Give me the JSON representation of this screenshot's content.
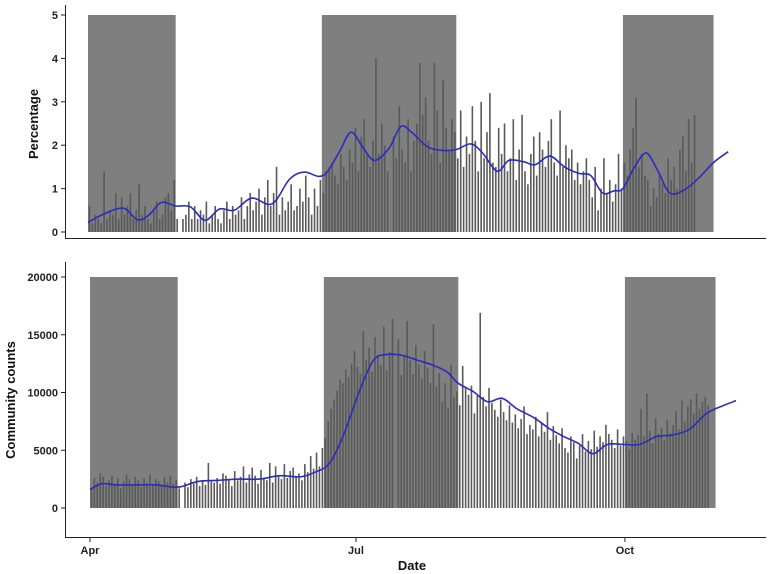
{
  "chart_data": [
    {
      "type": "bar",
      "panel": "top",
      "ylabel": "Percentage",
      "x_axis": "date",
      "xlim": [
        "2020-04-01",
        "2020-11-08"
      ],
      "ylim": [
        0,
        5
      ],
      "yticks": [
        "0",
        "1",
        "2",
        "3",
        "4",
        "5"
      ],
      "shaded_periods": [
        {
          "start": "2020-04-01",
          "end": "2020-05-01"
        },
        {
          "start": "2020-06-20",
          "end": "2020-08-05"
        },
        {
          "start": "2020-10-01",
          "end": "2020-11-01"
        }
      ],
      "bar_color": "#5a5a5a",
      "shade_color": "#7f7f7f",
      "smooth_color": "#2b2bbf",
      "bars": {
        "start": "2020-04-01",
        "values": [
          0.6,
          0.2,
          0.4,
          0.3,
          0.2,
          1.4,
          0.3,
          0.5,
          0.4,
          0.9,
          0.3,
          0.8,
          0.4,
          0.6,
          0.9,
          0.3,
          0.5,
          1.1,
          0.4,
          0.6,
          0.3,
          0.2,
          0.5,
          0.7,
          0.3,
          0.4,
          0.8,
          0.9,
          0.5,
          1.2,
          0.3,
          0.7,
          0.3,
          0.4,
          0.7,
          0.3,
          0.6,
          0.3,
          0.5,
          0.4,
          0.7,
          0.2,
          0.4,
          0.6,
          0.3,
          0.2,
          0.5,
          0.7,
          0.3,
          0.6,
          0.4,
          0.5,
          0.8,
          0.3,
          0.6,
          0.9,
          0.5,
          0.7,
          1.0,
          0.4,
          0.8,
          1.2,
          0.6,
          0.9,
          1.5,
          0.4,
          0.8,
          0.5,
          0.7,
          1.1,
          0.5,
          0.6,
          1.0,
          0.7,
          1.3,
          0.8,
          0.4,
          1.0,
          0.6,
          1.2,
          0.9,
          1.4,
          1.5,
          1.6,
          1.3,
          1.1,
          1.8,
          1.5,
          1.2,
          1.9,
          1.6,
          2.4,
          1.4,
          2.2,
          2.6,
          1.8,
          1.5,
          2.1,
          4.0,
          1.8,
          2.5,
          2.0,
          1.4,
          3.3,
          2.2,
          1.7,
          2.9,
          1.9,
          1.6,
          2.6,
          1.4,
          2.1,
          2.5,
          3.9,
          2.7,
          3.1,
          2.1,
          1.8,
          3.9,
          2.8,
          1.6,
          3.5,
          2.4,
          1.9,
          2.6,
          2.3,
          1.7,
          2.8,
          1.5,
          2.2,
          1.8,
          2.9,
          2.1,
          1.4,
          3.0,
          1.7,
          2.3,
          3.2,
          1.6,
          1.5,
          2.4,
          1.8,
          2.5,
          1.4,
          1.7,
          2.6,
          1.2,
          1.9,
          2.7,
          1.4,
          1.1,
          1.8,
          2.2,
          1.3,
          2.3,
          1.9,
          1.5,
          2.1,
          2.6,
          1.6,
          1.3,
          2.8,
          1.5,
          2.0,
          1.7,
          1.9,
          1.2,
          1.6,
          1.1,
          1.4,
          1.7,
          1.2,
          0.8,
          1.5,
          0.5,
          1.0,
          1.7,
          0.9,
          1.2,
          0.7,
          1.1,
          1.8,
          1.0,
          1.6,
          1.3,
          1.9,
          2.4,
          3.1,
          1.5,
          1.8,
          1.3,
          1.2,
          0.6,
          1.0,
          0.8,
          1.3,
          1.1,
          0.9,
          1.7,
          1.2,
          1.5,
          1.0,
          1.9,
          2.2,
          1.4,
          2.6,
          1.6,
          2.7
        ],
        "gaps": [
          31,
          103
        ]
      },
      "smooth": {
        "x": [
          "2020-04-01",
          "2020-04-06",
          "2020-04-13",
          "2020-04-18",
          "2020-04-22",
          "2020-04-26",
          "2020-05-01",
          "2020-05-06",
          "2020-05-11",
          "2020-05-16",
          "2020-05-21",
          "2020-05-27",
          "2020-06-03",
          "2020-06-09",
          "2020-06-14",
          "2020-06-19",
          "2020-06-22",
          "2020-06-26",
          "2020-06-30",
          "2020-07-04",
          "2020-07-08",
          "2020-07-13",
          "2020-07-17",
          "2020-07-21",
          "2020-07-26",
          "2020-07-31",
          "2020-08-05",
          "2020-08-10",
          "2020-08-14",
          "2020-08-19",
          "2020-08-23",
          "2020-08-28",
          "2020-09-01",
          "2020-09-06",
          "2020-09-11",
          "2020-09-16",
          "2020-09-20",
          "2020-09-24",
          "2020-09-28",
          "2020-10-01",
          "2020-10-05",
          "2020-10-09",
          "2020-10-13",
          "2020-10-17",
          "2020-10-22",
          "2020-10-27",
          "2020-11-01",
          "2020-11-06"
        ],
        "y": [
          0.22,
          0.4,
          0.55,
          0.28,
          0.4,
          0.68,
          0.6,
          0.58,
          0.27,
          0.53,
          0.5,
          0.78,
          0.65,
          1.22,
          1.38,
          1.28,
          1.4,
          1.85,
          2.3,
          1.95,
          1.65,
          1.93,
          2.43,
          2.28,
          1.97,
          1.88,
          1.9,
          2.03,
          1.82,
          1.4,
          1.65,
          1.62,
          1.55,
          1.75,
          1.5,
          1.35,
          1.3,
          0.9,
          0.95,
          1.0,
          1.5,
          1.82,
          1.4,
          0.9,
          0.97,
          1.25,
          1.6,
          1.85
        ]
      }
    },
    {
      "type": "bar",
      "panel": "bottom",
      "xlabel": "Date",
      "ylabel": "Community counts",
      "x_axis": "date",
      "xlim": [
        "2020-04-01",
        "2020-11-08"
      ],
      "ylim": [
        0,
        20000
      ],
      "yticks": [
        "0",
        "5000",
        "10000",
        "15000",
        "20000"
      ],
      "xticks": [
        {
          "date": "2020-04-01",
          "label": "Apr"
        },
        {
          "date": "2020-07-01",
          "label": "Jul"
        },
        {
          "date": "2020-10-01",
          "label": "Oct"
        }
      ],
      "shaded_periods": [
        {
          "start": "2020-04-01",
          "end": "2020-05-01"
        },
        {
          "start": "2020-06-20",
          "end": "2020-08-05"
        },
        {
          "start": "2020-10-01",
          "end": "2020-11-01"
        }
      ],
      "bar_color": "#5a5a5a",
      "shade_color": "#7f7f7f",
      "smooth_color": "#2b2bbf",
      "bars": {
        "start": "2020-04-01",
        "values": [
          1800,
          2600,
          2200,
          3000,
          2700,
          1900,
          2400,
          2800,
          2100,
          2600,
          1700,
          2300,
          2900,
          2500,
          2000,
          2700,
          2400,
          1800,
          2600,
          2200,
          2900,
          2000,
          2500,
          2300,
          1900,
          2700,
          2200,
          2800,
          2100,
          2400,
          1700,
          1900,
          2200,
          1800,
          2500,
          2100,
          2700,
          1900,
          2400,
          2000,
          3900,
          2300,
          2200,
          2600,
          2100,
          3000,
          2800,
          2500,
          1900,
          3200,
          2400,
          2700,
          3600,
          2200,
          2900,
          3500,
          2800,
          2100,
          3300,
          2600,
          2400,
          3900,
          2200,
          3600,
          2800,
          2500,
          3800,
          2600,
          3200,
          3500,
          2700,
          3000,
          2400,
          3800,
          3100,
          4500,
          3400,
          4800,
          3600,
          5200,
          6100,
          7500,
          8600,
          9400,
          10200,
          11100,
          10800,
          12000,
          11300,
          12500,
          13600,
          12200,
          11600,
          15300,
          12800,
          13900,
          11800,
          14800,
          13200,
          12400,
          15700,
          11900,
          13500,
          16400,
          12000,
          14600,
          11500,
          13200,
          16200,
          12800,
          11600,
          14100,
          12400,
          11200,
          13600,
          12100,
          10800,
          15900,
          10500,
          11700,
          9200,
          10800,
          8700,
          12400,
          9600,
          10100,
          8900,
          12300,
          10500,
          9800,
          10600,
          8200,
          9700,
          16900,
          9600,
          8800,
          10400,
          9100,
          8500,
          7900,
          9400,
          8300,
          7600,
          8900,
          7400,
          8100,
          6900,
          7700,
          8800,
          6400,
          7200,
          6800,
          7900,
          6200,
          7400,
          6600,
          8300,
          5900,
          7100,
          6300,
          5600,
          6900,
          5200,
          4800,
          6200,
          5700,
          4300,
          5400,
          6400,
          4900,
          5800,
          5100,
          6700,
          5300,
          6200,
          5700,
          7200,
          6400,
          5900,
          5200,
          6800,
          5400,
          6200,
          5800,
          5100,
          6500,
          5900,
          6300,
          8600,
          6200,
          9900,
          6700,
          5600,
          7800,
          6400,
          6900,
          5900,
          7600,
          6500,
          7200,
          8400,
          6800,
          9300,
          7500,
          8800,
          9400,
          8200,
          9900,
          8600,
          9200,
          9600,
          8900
        ],
        "gaps": [
          31,
          104
        ]
      },
      "smooth": {
        "x": [
          "2020-04-01",
          "2020-04-05",
          "2020-04-10",
          "2020-04-17",
          "2020-04-24",
          "2020-05-01",
          "2020-05-08",
          "2020-05-15",
          "2020-05-22",
          "2020-05-29",
          "2020-06-05",
          "2020-06-12",
          "2020-06-17",
          "2020-06-22",
          "2020-06-27",
          "2020-07-02",
          "2020-07-07",
          "2020-07-12",
          "2020-07-17",
          "2020-07-22",
          "2020-07-27",
          "2020-08-01",
          "2020-08-05",
          "2020-08-10",
          "2020-08-15",
          "2020-08-20",
          "2020-08-25",
          "2020-08-31",
          "2020-09-05",
          "2020-09-10",
          "2020-09-15",
          "2020-09-20",
          "2020-09-25",
          "2020-10-01",
          "2020-10-06",
          "2020-10-12",
          "2020-10-17",
          "2020-10-23",
          "2020-10-29",
          "2020-11-04",
          "2020-11-08"
        ],
        "y": [
          1600,
          2100,
          2000,
          2000,
          2000,
          1800,
          2300,
          2400,
          2500,
          2500,
          2800,
          2700,
          3100,
          3900,
          6500,
          10000,
          12800,
          13300,
          13200,
          12800,
          12400,
          11800,
          10800,
          10100,
          9200,
          9500,
          8600,
          7800,
          6900,
          6200,
          5600,
          4700,
          5500,
          5500,
          5500,
          6200,
          6300,
          6800,
          8200,
          8900,
          9300
        ]
      }
    }
  ]
}
